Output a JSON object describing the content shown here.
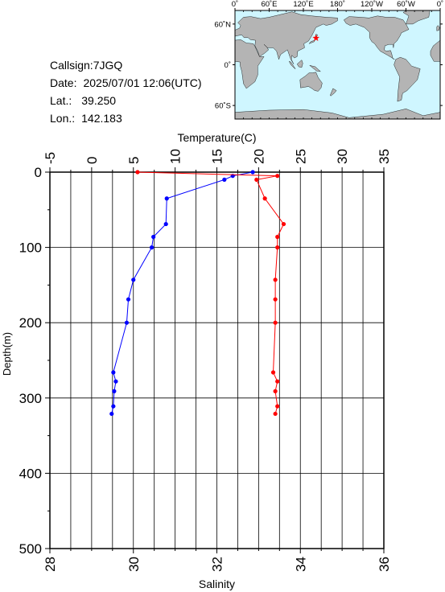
{
  "station": {
    "callsign_label": "Callsign:",
    "callsign": "7JGQ",
    "date_label": "Date:",
    "date": "2025/07/01 12:06(UTC)",
    "lat_label": "Lat.:",
    "lat": "39.250",
    "lon_label": "Lon.:",
    "lon": "142.183"
  },
  "map": {
    "top_ticks": [
      "0˚",
      "60˚E",
      "120˚E",
      "180˚",
      "120˚W",
      "60˚W",
      "0˚"
    ],
    "left_ticks": [
      "60˚N",
      "0˚",
      "60˚S"
    ],
    "ocean_color": "#cff6ff",
    "land_color": "#b4b4b4",
    "marker_color": "#ff0000",
    "marker_lat": 39.25,
    "marker_lon": 142.183
  },
  "chart_data": {
    "type": "line",
    "y": {
      "label": "Depth(m)",
      "range": [
        0,
        500
      ],
      "ticks": [
        0,
        100,
        200,
        300,
        400,
        500
      ],
      "inverted": true
    },
    "x_top": {
      "label": "Temperature(C)",
      "range": [
        -5,
        35
      ],
      "ticks": [
        -5,
        0,
        5,
        10,
        15,
        20,
        25,
        30,
        35
      ]
    },
    "x_bottom": {
      "label": "Salinity",
      "range": [
        28,
        36
      ],
      "ticks": [
        28,
        30,
        32,
        34,
        36
      ]
    },
    "grid": true,
    "series": [
      {
        "key": "temperature",
        "axis": "top",
        "color": "#0000ff",
        "depth": [
          0,
          5,
          10,
          35,
          69,
          86,
          100,
          143,
          169,
          200,
          266,
          278,
          291,
          311,
          321
        ],
        "values": [
          19.3,
          16.9,
          15.9,
          9.0,
          8.9,
          7.4,
          7.2,
          5.0,
          4.4,
          4.2,
          2.6,
          2.9,
          2.7,
          2.6,
          2.4
        ]
      },
      {
        "key": "salinity",
        "axis": "bottom",
        "color": "#ff0000",
        "depth": [
          0,
          5,
          10,
          35,
          69,
          86,
          100,
          143,
          169,
          200,
          266,
          278,
          291,
          311,
          321
        ],
        "values": [
          30.1,
          33.45,
          32.95,
          33.15,
          33.6,
          33.45,
          33.45,
          33.4,
          33.4,
          33.4,
          33.35,
          33.45,
          33.4,
          33.45,
          33.4
        ]
      }
    ]
  }
}
